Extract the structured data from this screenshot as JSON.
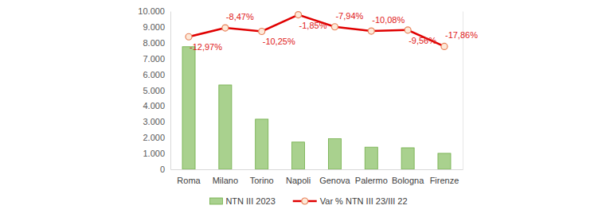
{
  "chart_data": {
    "type": "bar",
    "categories": [
      "Roma",
      "Milano",
      "Torino",
      "Napoli",
      "Genova",
      "Palermo",
      "Bologna",
      "Firenze"
    ],
    "series": [
      {
        "name": "NTN III 2023",
        "type": "bar",
        "color": "#a9d18e",
        "values": [
          7750,
          5330,
          3170,
          1720,
          1930,
          1400,
          1360,
          1010
        ]
      },
      {
        "name": "Var % NTN III 23/III 22",
        "type": "line",
        "axis": "y2",
        "color": "#e00000",
        "marker": "circle",
        "data_labels": true,
        "values": [
          -12.97,
          -8.47,
          -10.25,
          -1.85,
          -7.94,
          -10.08,
          -9.56,
          -17.86
        ],
        "value_labels": [
          "-12,97%",
          "-8,47%",
          "-10,25%",
          "-1,85%",
          "-7,94%",
          "-10,08%",
          "-9,56%",
          "-17,86%"
        ]
      }
    ],
    "ylim": [
      0,
      10000
    ],
    "yticks": [
      0,
      {
        "value": 1000,
        "label": "1.000"
      },
      {
        "value": 2000,
        "label": "2.000"
      },
      {
        "value": 3000,
        "label": "3.000"
      },
      {
        "value": 4000,
        "label": "4.000"
      },
      {
        "value": 5000,
        "label": "5.000"
      },
      {
        "value": 6000,
        "label": "6.000"
      },
      {
        "value": 7000,
        "label": "7.000"
      },
      {
        "value": 8000,
        "label": "8.000"
      },
      {
        "value": 9000,
        "label": "9.000"
      },
      {
        "value": 10000,
        "label": "10.000"
      }
    ],
    "y2lim": [
      -80,
      0
    ],
    "grid": false,
    "legend": "bottom"
  }
}
